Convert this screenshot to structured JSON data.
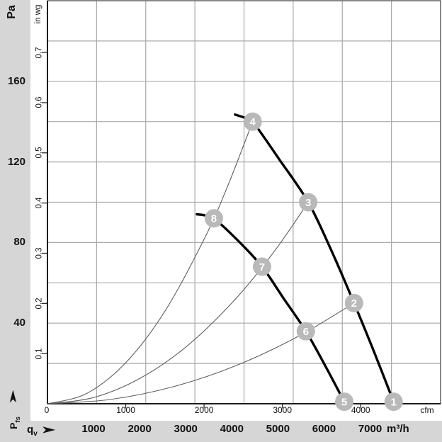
{
  "page": {
    "background": "#d6d6d6",
    "plot_background": "#ffffff",
    "grid_color": "#a9a9a9",
    "axis_color": "#1c1c1c",
    "fan_curve_color": "#000000",
    "system_curve_color": "#5f5f5f",
    "marker_color": "#b9b9b9",
    "marker_text_color": "#ffffff"
  },
  "left_axis": {
    "title": "Pa",
    "tick_values": [
      160,
      120,
      80,
      40
    ]
  },
  "inwg_axis": {
    "title": "in wg",
    "tick_values": [
      0.7,
      0.6,
      0.5,
      0.4,
      0.3,
      0.2,
      0.1
    ]
  },
  "cfm_axis": {
    "origin": "0",
    "tick_values": [
      1000,
      2000,
      3000,
      4000
    ],
    "unit": "cfm"
  },
  "m3h_axis": {
    "symbol_main": "q",
    "symbol_sub": "v",
    "arrow": "➤",
    "tick_values": [
      1000,
      2000,
      3000,
      4000,
      5000,
      6000,
      7000
    ],
    "unit": "m³/h"
  },
  "pfs_axis": {
    "symbol_main": "P",
    "symbol_sub": "fs",
    "arrow": "➤"
  },
  "chart_data": {
    "type": "line",
    "title": "Fan performance curves with operating points",
    "xlabel_inner": "qv (cfm)",
    "xlabel_outer": "qv (m³/h)",
    "ylabel_left": "Pfs (Pa)",
    "ylabel_inner": "Pfs (in wg)",
    "x_range_cfm": [
      0,
      5020
    ],
    "y_range_pa": [
      0,
      200
    ],
    "grid": {
      "cols": 8,
      "rows": 10,
      "pa_per_row": 20
    },
    "pa_per_inwg": 249,
    "m3h_per_cfm": 1.699,
    "legend_position": "none",
    "fan_curves": [
      {
        "name": "fan-curve-high-speed-points-1-4",
        "points": [
          [
            2395,
            143.5
          ],
          [
            2513,
            142
          ],
          [
            2620,
            140
          ],
          [
            2965,
            121
          ],
          [
            3330,
            100
          ],
          [
            3626,
            76
          ],
          [
            3915,
            50
          ],
          [
            4168,
            26
          ],
          [
            4420,
            1
          ]
        ]
      },
      {
        "name": "fan-curve-low-speed-points-5-8",
        "points": [
          [
            1908,
            94
          ],
          [
            2010,
            93.5
          ],
          [
            2125,
            92
          ],
          [
            2432,
            81
          ],
          [
            2740,
            68
          ],
          [
            3020,
            52
          ],
          [
            3300,
            36
          ],
          [
            3545,
            19
          ],
          [
            3790,
            1
          ]
        ]
      }
    ],
    "system_curves": [
      {
        "name": "system-resistance-line-through-8-4",
        "points": [
          [
            0,
            0
          ],
          [
            500,
            5.1
          ],
          [
            1000,
            20.4
          ],
          [
            1500,
            45.9
          ],
          [
            2000,
            81.6
          ],
          [
            2300,
            107.9
          ],
          [
            2620,
            140
          ]
        ]
      },
      {
        "name": "system-resistance-line-through-7-3",
        "points": [
          [
            0,
            0
          ],
          [
            600,
            3.2
          ],
          [
            1200,
            13.0
          ],
          [
            1800,
            29.2
          ],
          [
            2400,
            51.9
          ],
          [
            2900,
            75.8
          ],
          [
            3330,
            100
          ]
        ]
      },
      {
        "name": "system-resistance-line-through-6-2",
        "points": [
          [
            0,
            0
          ],
          [
            800,
            2.1
          ],
          [
            1600,
            8.4
          ],
          [
            2400,
            18.8
          ],
          [
            3200,
            33.4
          ],
          [
            3915,
            50
          ]
        ]
      }
    ],
    "operating_points": [
      {
        "label": "1",
        "cfm": 4420,
        "pa": 1
      },
      {
        "label": "2",
        "cfm": 3915,
        "pa": 50
      },
      {
        "label": "3",
        "cfm": 3330,
        "pa": 100
      },
      {
        "label": "4",
        "cfm": 2620,
        "pa": 140
      },
      {
        "label": "5",
        "cfm": 3790,
        "pa": 1
      },
      {
        "label": "6",
        "cfm": 3300,
        "pa": 36
      },
      {
        "label": "7",
        "cfm": 2740,
        "pa": 68
      },
      {
        "label": "8",
        "cfm": 2125,
        "pa": 92
      }
    ]
  }
}
